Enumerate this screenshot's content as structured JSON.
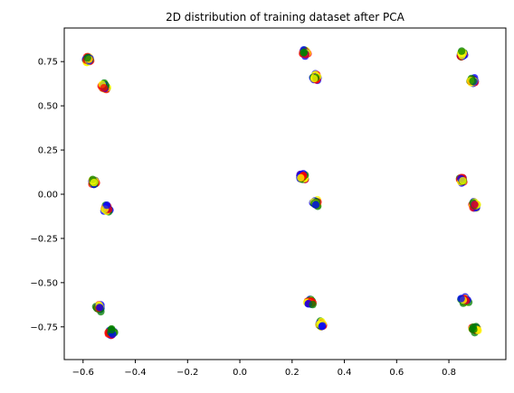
{
  "chart_data": {
    "type": "scatter",
    "title": "2D distribution of training dataset after PCA",
    "xlabel": "",
    "ylabel": "",
    "xlim": [
      -0.672,
      1.018
    ],
    "ylim": [
      -0.935,
      0.94
    ],
    "x_ticks": [
      -0.6,
      -0.4,
      -0.2,
      0.0,
      0.2,
      0.4,
      0.6,
      0.8
    ],
    "y_ticks": [
      -0.75,
      -0.5,
      -0.25,
      0.0,
      0.25,
      0.5,
      0.75
    ],
    "x_tick_labels": [
      "−0.6",
      "−0.4",
      "−0.2",
      "0.0",
      "0.2",
      "0.4",
      "0.6",
      "0.8"
    ],
    "y_tick_labels": [
      "−0.75",
      "−0.50",
      "−0.25",
      "0.00",
      "0.25",
      "0.50",
      "0.75"
    ],
    "grid": false,
    "legend": "none",
    "marker_alpha": 0.75,
    "series": [
      {
        "color": "#0000ff",
        "values": []
      },
      {
        "color": "#008000",
        "values": []
      },
      {
        "color": "#ff0000",
        "values": []
      },
      {
        "color": "#ffff00",
        "values": []
      }
    ],
    "clusters": [
      [
        -0.58,
        0.76
      ],
      [
        -0.52,
        0.61
      ],
      [
        0.25,
        0.8
      ],
      [
        0.29,
        0.66
      ],
      [
        0.85,
        0.79
      ],
      [
        0.89,
        0.64
      ],
      [
        -0.56,
        0.07
      ],
      [
        -0.51,
        -0.08
      ],
      [
        0.24,
        0.1
      ],
      [
        0.29,
        -0.05
      ],
      [
        0.85,
        0.08
      ],
      [
        0.9,
        -0.06
      ],
      [
        -0.54,
        -0.64
      ],
      [
        -0.49,
        -0.78
      ],
      [
        0.27,
        -0.61
      ],
      [
        0.31,
        -0.74
      ],
      [
        0.86,
        -0.6
      ],
      [
        0.9,
        -0.76
      ]
    ]
  }
}
